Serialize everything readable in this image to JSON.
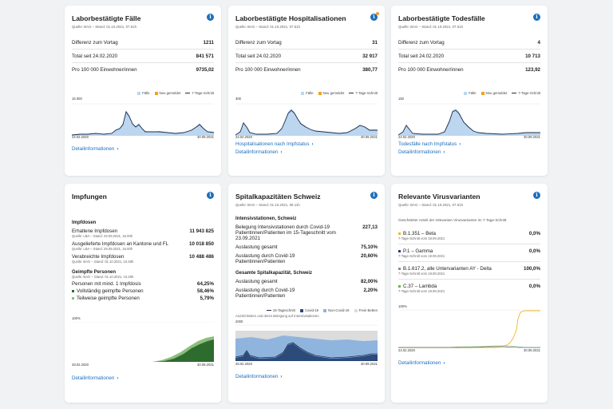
{
  "colors": {
    "accent": "#1c6fbd",
    "fill_light": "#bcd6ef",
    "line_dark": "#1f2d47",
    "new_orange": "#f3a21d",
    "vacc_dark": "#2e6b2f",
    "vacc_light": "#8cbf7c",
    "variant_yellow": "#f0b829",
    "variant_green": "#6fb44d",
    "variant_gray": "#8c8c8c",
    "variant_navy": "#2c3d74"
  },
  "cards": {
    "cases": {
      "title": "Laborbestätigte Fälle",
      "source": "Quelle: BAG – Stand: 01.10.2021, 07.51h",
      "rows": [
        {
          "label": "Differenz zum Vortag",
          "value": "1211"
        },
        {
          "label": "Total seit 24.02.2020",
          "value": "841 571"
        },
        {
          "label": "Pro 100 000 Einwohner/innen",
          "value": "9735,02"
        }
      ],
      "legend": [
        "Fälle",
        "Neu gemeldet",
        "7-Tage-Schnitt"
      ],
      "y_top": "15 000",
      "x_start": "24.02.2020",
      "x_end": "30.09.2021",
      "link": "Detailinformationen"
    },
    "hosp": {
      "title": "Laborbestätigte Hospitalisationen",
      "source": "Quelle: BAG – Stand: 01.10.2021, 07.51h",
      "rows": [
        {
          "label": "Differenz zum Vortag",
          "value": "31"
        },
        {
          "label": "Total seit 24.02.2020",
          "value": "32 917"
        },
        {
          "label": "Pro 100 000 Einwohner/innen",
          "value": "380,77"
        }
      ],
      "legend": [
        "Fälle",
        "Neu gemeldet",
        "7-Tage-Schnitt"
      ],
      "y_top": "300",
      "x_start": "24.02.2020",
      "x_end": "30.09.2021",
      "extra_link": "Hospitalisationen nach Impfstatus",
      "link": "Detailinformationen"
    },
    "deaths": {
      "title": "Laborbestätigte Todesfälle",
      "source": "Quelle: BAG – Stand: 01.10.2021, 07.51h",
      "rows": [
        {
          "label": "Differenz zum Vortag",
          "value": "4"
        },
        {
          "label": "Total seit 24.02.2020",
          "value": "10 713"
        },
        {
          "label": "Pro 100 000 Einwohner/innen",
          "value": "123,92"
        }
      ],
      "legend": [
        "Fälle",
        "Neu gemeldet",
        "7-Tage-Schnitt"
      ],
      "y_top": "150",
      "x_start": "24.02.2020",
      "x_end": "30.09.2021",
      "extra_link": "Todesfälle nach Impfstatus",
      "link": "Detailinformationen"
    },
    "vacc": {
      "title": "Impfungen",
      "doses_heading": "Impfdosen",
      "doses": [
        {
          "label": "Erhaltene Impfdosen",
          "sub": "Quelle: LBA – Stand: 29.09.2021, 16.00h",
          "value": "11 943 825"
        },
        {
          "label": "Ausgelieferte Impfdosen an Kantone und FL",
          "sub": "Quelle: LBA – Stand: 29.09.2021, 16.00h",
          "value": "10 018 850"
        },
        {
          "label": "Verabreichte Impfdosen",
          "sub": "Quelle: BAG – Stand: 01.10.2021, 10.28h",
          "value": "10 488 486"
        }
      ],
      "persons_heading": "Geimpfte Personen",
      "persons_sub": "Quelle: BAG – Stand: 01.10.2021, 10.28h",
      "persons": [
        {
          "label": "Personen mit mind. 1 Impfdosis",
          "value": "64,25%"
        },
        {
          "label": "Vollständig geimpfte Personen",
          "value": "58,46%"
        },
        {
          "label": "Teilweise geimpfte Personen",
          "value": "5,79%"
        }
      ],
      "y_top": "100%",
      "x_start": "28.02.2020",
      "x_end": "30.09.2021",
      "link": "Detailinformationen"
    },
    "icu": {
      "title": "Spitalkapazitäten Schweiz",
      "source": "Quelle: BAG – Stand: 01.10.2021, 08.11h",
      "icu_heading": "Intensivstationen, Schweiz",
      "icu_items": [
        {
          "label": "Belegung Intensivstationen durch Covid-19 Patientinnen/Patienten im 15-Tageschnitt vom 23.09.2021",
          "value": "227,13"
        },
        {
          "label": "Auslastung gesamt",
          "value": "75,10%"
        },
        {
          "label": "Auslastung durch Covid-19 Patientinnen/Patienten",
          "value": "20,60%"
        }
      ],
      "total_heading": "Gesamte Spitalkapazität, Schweiz",
      "total_items": [
        {
          "label": "Auslastung gesamt",
          "value": "82,00%"
        },
        {
          "label": "Auslastung durch Covid-19 Patientinnen/Patienten",
          "value": "2,20%"
        }
      ],
      "legend": [
        "15-Tageschnitt",
        "Covid-19",
        "Non-Covid-19",
        "Freie Betten"
      ],
      "chart_caption": "Anzahl Betten und deren Belegung auf Intensivstationen",
      "y_top": "2000",
      "x_start": "28.02.2020",
      "x_end": "30.09.2021",
      "link": "Detailinformationen"
    },
    "variants": {
      "title": "Relevante Virusvarianten",
      "source": "Quelle: BAG – Stand: 01.10.2021, 07.51h",
      "intro": "Geschätzter Anteil der relevanten Virusvarianten im 7-Tage-Schnitt",
      "items": [
        {
          "label": "B.1.351 – Beta",
          "sub": "7-Tage-Schnitt vom 19.09.2021",
          "value": "0,0%",
          "color": "#f0b829"
        },
        {
          "label": "P.1 – Gamma",
          "sub": "7-Tage-Schnitt vom 19.09.2021",
          "value": "0,0%",
          "color": "#2c3d74"
        },
        {
          "label": "B.1.617.2, alle Untervarianten AY - Delta",
          "sub": "7-Tage-Schnitt vom 19.09.2021",
          "value": "100,0%",
          "color": "#8c8c8c"
        },
        {
          "label": "C.37 – Lambda",
          "sub": "7-Tage-Schnitt vom 19.09.2021",
          "value": "0,0%",
          "color": "#6fb44d"
        }
      ],
      "y_top": "100%",
      "x_start": "24.02.2020",
      "x_end": "30.09.2021",
      "link": "Detailinformationen"
    }
  }
}
